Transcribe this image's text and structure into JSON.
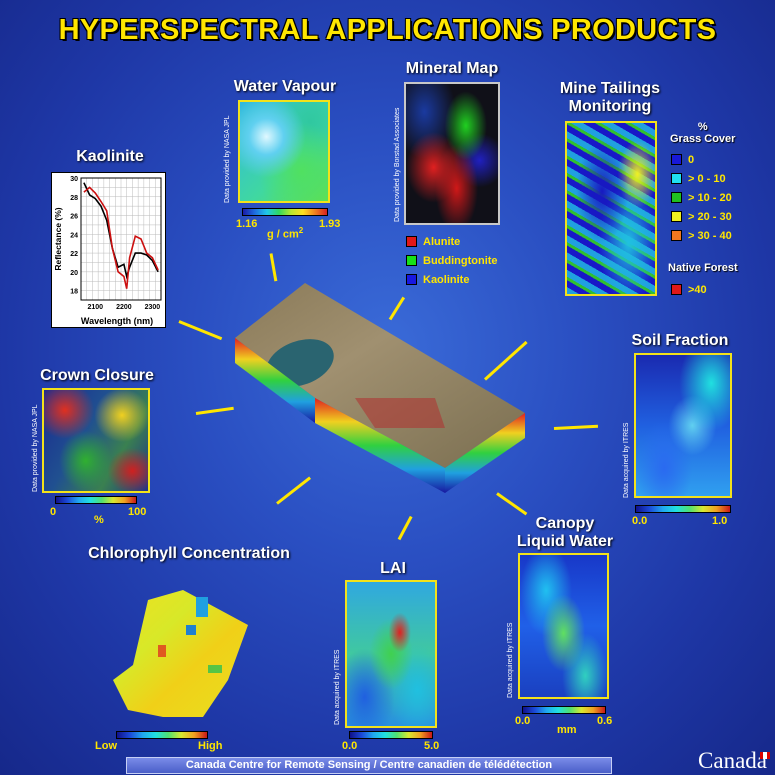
{
  "title": "HYPERSPECTRAL APPLICATIONS PRODUCTS",
  "footer": "Canada Centre for Remote Sensing / Centre canadien de télédétection",
  "wordmark": "Canada",
  "products": {
    "water_vapour": {
      "title": "Water Vapour",
      "credit": "Data provided by NASA JPL",
      "min": "1.16",
      "max": "1.93",
      "unit": "g / cm",
      "unit_sup": "2"
    },
    "mineral_map": {
      "title": "Mineral Map",
      "credit": "Data provided by Borstad Associates",
      "legend": [
        {
          "label": "Alunite",
          "color": "#e01818"
        },
        {
          "label": "Buddingtonite",
          "color": "#18e018"
        },
        {
          "label": "Kaolinite",
          "color": "#1818e0"
        }
      ]
    },
    "mine_tailings": {
      "title_line1": "Mine Tailings",
      "title_line2": "Monitoring",
      "legend_title_1": "%",
      "legend_title_2": "Grass Cover",
      "legend": [
        {
          "label": "0",
          "color": "#1818d8"
        },
        {
          "label": "> 0 - 10",
          "color": "#20e0f0"
        },
        {
          "label": "> 10 - 20",
          "color": "#20c020"
        },
        {
          "label": "> 20 - 30",
          "color": "#f0f020"
        },
        {
          "label": "> 30 - 40",
          "color": "#f07820"
        }
      ],
      "native_title": "Native Forest",
      "native": {
        "label": ">40",
        "color": "#e01818"
      }
    },
    "kaolinite": {
      "title": "Kaolinite",
      "ylabel": "Reflectance (%)",
      "xlabel": "Wavelength (nm)",
      "yticks": [
        "30",
        "28",
        "26",
        "24",
        "22",
        "20",
        "18"
      ],
      "xticks": [
        "2100",
        "2200",
        "2300"
      ]
    },
    "crown_closure": {
      "title": "Crown Closure",
      "credit": "Data provided by NASA JPL",
      "min": "0",
      "unit": "%",
      "max": "100"
    },
    "soil_fraction": {
      "title": "Soil Fraction",
      "credit": "Data acquired by ITRES",
      "min": "0.0",
      "max": "1.0"
    },
    "chlorophyll": {
      "title": "Chlorophyll Concentration",
      "min": "Low",
      "max": "High"
    },
    "lai": {
      "title": "LAI",
      "credit": "Data acquired by ITRES",
      "min": "0.0",
      "max": "5.0"
    },
    "canopy_water": {
      "title_line1": "Canopy",
      "title_line2": "Liquid Water",
      "credit": "Data acquired by ITRES",
      "min": "0.0",
      "unit": "mm",
      "max": "0.6"
    }
  },
  "chart_data": {
    "type": "line",
    "title": "Kaolinite",
    "xlabel": "Wavelength (nm)",
    "ylabel": "Reflectance (%)",
    "xlim": [
      2050,
      2330
    ],
    "ylim": [
      17,
      30
    ],
    "series": [
      {
        "color": "#000000",
        "x": [
          2060,
          2080,
          2100,
          2120,
          2140,
          2160,
          2180,
          2200,
          2210,
          2220,
          2240,
          2260,
          2280,
          2300,
          2320
        ],
        "y": [
          29.5,
          28.2,
          27.8,
          27.0,
          25.5,
          22.5,
          20.5,
          20.8,
          19.5,
          20.5,
          22.0,
          22.0,
          21.8,
          21.2,
          20.0
        ]
      },
      {
        "color": "#cc1010",
        "x": [
          2060,
          2080,
          2100,
          2120,
          2140,
          2160,
          2180,
          2200,
          2210,
          2220,
          2240,
          2260,
          2280,
          2300,
          2320
        ],
        "y": [
          28.5,
          29.0,
          28.4,
          27.5,
          26.5,
          22.5,
          20.0,
          19.5,
          18.2,
          21.5,
          23.8,
          23.5,
          22.0,
          21.5,
          20.2
        ]
      }
    ]
  }
}
